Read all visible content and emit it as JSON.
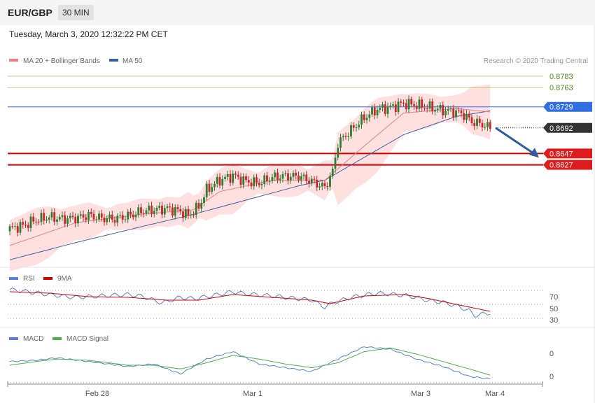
{
  "header": {
    "pair": "EUR/GBP",
    "timeframe": "30 MIN"
  },
  "datetime": "Tuesday, March 3, 2020 12:32:22 PM CET",
  "legend": {
    "ma20": "MA 20 + Bollinger Bands",
    "ma50": "MA 50",
    "credit": "Research © 2020 Trading Central"
  },
  "colors": {
    "bull": "#2e7d32",
    "bear": "#c62828",
    "band": "#ffd6d6",
    "ma20": "#f08080",
    "ma50": "#3b5ea8",
    "resistance": "#8bc34a",
    "support": "#d50000",
    "pivot": "#2962ff",
    "current": "#333333",
    "rsi": "#5b7fd6",
    "rsi_ma": "#d50000",
    "macd": "#5b7fd6",
    "macd_signal": "#4caf50"
  },
  "levels": [
    {
      "value": "0.8783",
      "type": "resistance"
    },
    {
      "value": "0.8763",
      "type": "resistance"
    },
    {
      "value": "0.8729",
      "type": "pivot"
    },
    {
      "value": "0.8692",
      "type": "current"
    },
    {
      "value": "0.8647",
      "type": "support"
    },
    {
      "value": "0.8627",
      "type": "support"
    }
  ],
  "rsi_panel": {
    "legend": [
      "RSI",
      "9MA"
    ],
    "ticks": [
      "70",
      "50",
      "30"
    ]
  },
  "macd_panel": {
    "legend": [
      "MACD",
      "MACD Signal"
    ],
    "ticks": [
      "0",
      "0"
    ]
  },
  "chart_data": [
    {
      "type": "candlestick",
      "x_ticks": [
        "Feb 28",
        "Mar 1",
        "Mar 3",
        "Mar 4"
      ],
      "ylim": [
        0.848,
        0.88
      ],
      "close_path": [
        [
          0,
          0.8515
        ],
        [
          5,
          0.852
        ],
        [
          10,
          0.853
        ],
        [
          15,
          0.8535
        ],
        [
          20,
          0.8532
        ],
        [
          25,
          0.8533
        ],
        [
          30,
          0.8538
        ],
        [
          35,
          0.8533
        ],
        [
          40,
          0.8532
        ],
        [
          45,
          0.8537
        ],
        [
          50,
          0.8545
        ],
        [
          55,
          0.8548
        ],
        [
          60,
          0.855
        ],
        [
          65,
          0.8545
        ],
        [
          68,
          0.8538
        ],
        [
          72,
          0.8553
        ],
        [
          75,
          0.8583
        ],
        [
          80,
          0.86
        ],
        [
          85,
          0.8608
        ],
        [
          90,
          0.8598
        ],
        [
          95,
          0.8595
        ],
        [
          100,
          0.8605
        ],
        [
          105,
          0.8607
        ],
        [
          110,
          0.8607
        ],
        [
          115,
          0.8598
        ],
        [
          120,
          0.8587
        ],
        [
          123,
          0.8615
        ],
        [
          125,
          0.8665
        ],
        [
          130,
          0.8688
        ],
        [
          135,
          0.871
        ],
        [
          140,
          0.8725
        ],
        [
          145,
          0.8728
        ],
        [
          150,
          0.8735
        ],
        [
          155,
          0.8732
        ],
        [
          160,
          0.8728
        ],
        [
          165,
          0.8723
        ],
        [
          170,
          0.872
        ],
        [
          173,
          0.8715
        ],
        [
          176,
          0.8703
        ],
        [
          180,
          0.8698
        ],
        [
          183,
          0.8692
        ]
      ],
      "ma20_path": [
        [
          0,
          0.8485
        ],
        [
          25,
          0.8525
        ],
        [
          50,
          0.854
        ],
        [
          70,
          0.8548
        ],
        [
          80,
          0.858
        ],
        [
          100,
          0.86
        ],
        [
          120,
          0.86
        ],
        [
          135,
          0.866
        ],
        [
          150,
          0.8718
        ],
        [
          170,
          0.8726
        ],
        [
          183,
          0.872
        ]
      ],
      "ma50_path": [
        [
          0,
          0.846
        ],
        [
          25,
          0.849
        ],
        [
          50,
          0.8518
        ],
        [
          70,
          0.854
        ],
        [
          90,
          0.8565
        ],
        [
          110,
          0.859
        ],
        [
          120,
          0.86
        ],
        [
          135,
          0.864
        ],
        [
          150,
          0.868
        ],
        [
          170,
          0.8712
        ],
        [
          183,
          0.8722
        ]
      ],
      "forecast": {
        "from": 0.8692,
        "to": 0.8647
      }
    },
    {
      "type": "line",
      "name": "RSI",
      "ylim": [
        20,
        80
      ],
      "series": [
        {
          "name": "RSI",
          "points": [
            [
              0,
              71
            ],
            [
              5,
              69
            ],
            [
              15,
              64
            ],
            [
              25,
              60
            ],
            [
              35,
              62
            ],
            [
              45,
              64
            ],
            [
              50,
              62
            ],
            [
              58,
              52
            ],
            [
              65,
              60
            ],
            [
              70,
              58
            ],
            [
              78,
              63
            ],
            [
              85,
              68
            ],
            [
              90,
              65
            ],
            [
              100,
              62
            ],
            [
              110,
              58
            ],
            [
              115,
              56
            ],
            [
              120,
              46
            ],
            [
              123,
              52
            ],
            [
              130,
              60
            ],
            [
              140,
              66
            ],
            [
              150,
              63
            ],
            [
              155,
              60
            ],
            [
              160,
              55
            ],
            [
              165,
              53
            ],
            [
              170,
              48
            ],
            [
              175,
              41
            ],
            [
              177,
              34
            ],
            [
              183,
              38
            ]
          ]
        },
        {
          "name": "9MA",
          "points": [
            [
              0,
              68
            ],
            [
              15,
              66
            ],
            [
              30,
              61
            ],
            [
              45,
              60
            ],
            [
              60,
              56
            ],
            [
              72,
              56
            ],
            [
              85,
              64
            ],
            [
              100,
              60
            ],
            [
              115,
              56
            ],
            [
              122,
              51
            ],
            [
              135,
              62
            ],
            [
              150,
              64
            ],
            [
              160,
              58
            ],
            [
              170,
              50
            ],
            [
              183,
              40
            ]
          ]
        }
      ]
    },
    {
      "type": "line",
      "name": "MACD",
      "series": [
        {
          "name": "MACD",
          "points": [
            [
              0,
              0.0006
            ],
            [
              10,
              0.0007
            ],
            [
              18,
              0.0009
            ],
            [
              30,
              0.0006
            ],
            [
              45,
              0.0002
            ],
            [
              55,
              0.0004
            ],
            [
              65,
              -0.0004
            ],
            [
              75,
              0.0008
            ],
            [
              85,
              0.0014
            ],
            [
              95,
              0.0004
            ],
            [
              105,
              0.0001
            ],
            [
              115,
              -0.0002
            ],
            [
              125,
              0.0008
            ],
            [
              135,
              0.0018
            ],
            [
              145,
              0.0016
            ],
            [
              155,
              0.0008
            ],
            [
              165,
              0.0002
            ],
            [
              175,
              -0.0006
            ],
            [
              183,
              -0.0008
            ]
          ]
        },
        {
          "name": "MACD Signal",
          "points": [
            [
              0,
              0.0003
            ],
            [
              10,
              0.0006
            ],
            [
              18,
              0.0008
            ],
            [
              30,
              0.0007
            ],
            [
              45,
              0.0003
            ],
            [
              55,
              0.0003
            ],
            [
              65,
              0.0
            ],
            [
              75,
              0.0005
            ],
            [
              85,
              0.0011
            ],
            [
              95,
              0.0008
            ],
            [
              105,
              0.0004
            ],
            [
              115,
              0.0001
            ],
            [
              125,
              0.0005
            ],
            [
              135,
              0.0014
            ],
            [
              145,
              0.0017
            ],
            [
              155,
              0.0012
            ],
            [
              165,
              0.0006
            ],
            [
              175,
              0.0
            ],
            [
              183,
              -0.0005
            ]
          ]
        }
      ]
    }
  ]
}
